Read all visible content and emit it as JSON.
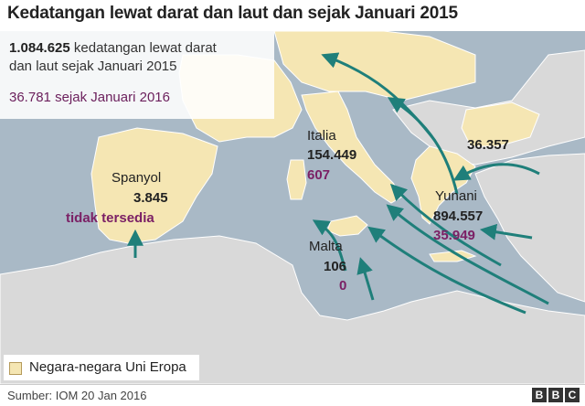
{
  "title": "Kedatangan lewat darat dan laut dan sejak Januari 2015",
  "info": {
    "total_number": "1.084.625",
    "total_text": "kedatangan lewat darat",
    "total_text_2": "dan laut sejak Januari 2015",
    "since2016_number": "36.781",
    "since2016_text": "sejak Januari 2016"
  },
  "countries": [
    {
      "name": "Spanyol",
      "total": "3.845",
      "since2016": "tidak tersedia"
    },
    {
      "name": "Italia",
      "total": "154.449",
      "since2016": "607"
    },
    {
      "name": "Malta",
      "total": "106",
      "since2016": "0"
    },
    {
      "name": "Yunani",
      "total": "894.557",
      "since2016": "35.949"
    },
    {
      "name": "",
      "total": "36.357",
      "since2016": ""
    }
  ],
  "legend": {
    "label": "Negara-negara Uni Eropa"
  },
  "footer": {
    "source": "Sumber: IOM 20 Jan 2016",
    "logo": [
      "B",
      "B",
      "C"
    ]
  },
  "colors": {
    "sea": "#a9b9c6",
    "eu_land": "#f5e6b3",
    "other_land": "#d9d9d9",
    "arrow": "#1f7f7a",
    "since2016": "#7b2065"
  }
}
